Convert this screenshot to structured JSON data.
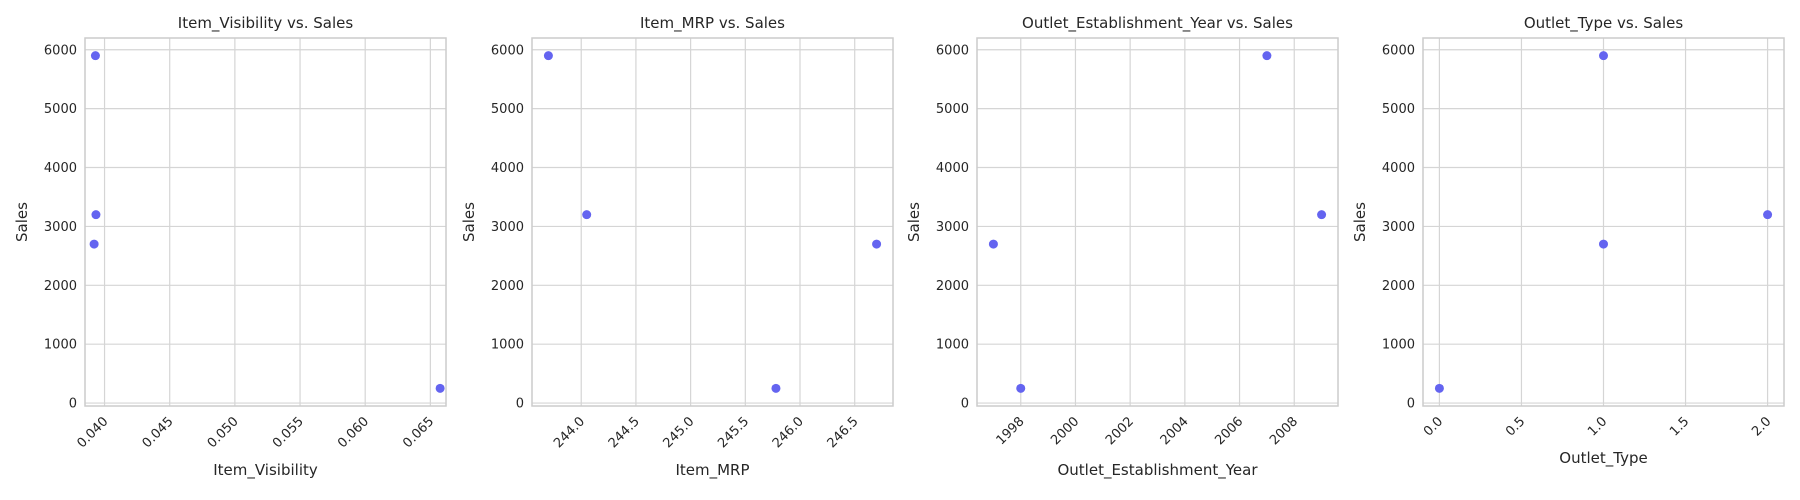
{
  "chart_data": [
    {
      "type": "scatter",
      "title": "Item_Visibility vs. Sales",
      "xlabel": "Item_Visibility",
      "ylabel": "Sales",
      "xlim": [
        0.0385,
        0.0662
      ],
      "ylim": [
        -50,
        6200
      ],
      "xticks": [
        0.04,
        0.045,
        0.05,
        0.055,
        0.06,
        0.065
      ],
      "xtick_labels": [
        "0.040",
        "0.045",
        "0.050",
        "0.055",
        "0.060",
        "0.065"
      ],
      "yticks": [
        0,
        1000,
        2000,
        3000,
        4000,
        5000,
        6000
      ],
      "ytick_labels": [
        "0",
        "1000",
        "2000",
        "3000",
        "4000",
        "5000",
        "6000"
      ],
      "x_tick_rotation": -45,
      "grid": true,
      "point_color": "#6464f0",
      "x": [
        0.0393,
        0.03934,
        0.0392,
        0.06575
      ],
      "y": [
        5900,
        3200,
        2700,
        250
      ]
    },
    {
      "type": "scatter",
      "title": "Item_MRP vs. Sales",
      "xlabel": "Item_MRP",
      "ylabel": "Sales",
      "xlim": [
        243.55,
        246.85
      ],
      "ylim": [
        -50,
        6200
      ],
      "xticks": [
        244.0,
        244.5,
        245.0,
        245.5,
        246.0,
        246.5
      ],
      "xtick_labels": [
        "244.0",
        "244.5",
        "245.0",
        "245.5",
        "246.0",
        "246.5"
      ],
      "yticks": [
        0,
        1000,
        2000,
        3000,
        4000,
        5000,
        6000
      ],
      "ytick_labels": [
        "0",
        "1000",
        "2000",
        "3000",
        "4000",
        "5000",
        "6000"
      ],
      "x_tick_rotation": -45,
      "grid": true,
      "point_color": "#6464f0",
      "x": [
        243.7,
        244.05,
        245.78,
        246.7
      ],
      "y": [
        5900,
        3200,
        250,
        2700
      ]
    },
    {
      "type": "scatter",
      "title": "Outlet_Establishment_Year vs. Sales",
      "xlabel": "Outlet_Establishment_Year",
      "ylabel": "Sales",
      "xlim": [
        1996.4,
        2009.6
      ],
      "ylim": [
        -50,
        6200
      ],
      "xticks": [
        1998,
        2000,
        2002,
        2004,
        2006,
        2008
      ],
      "xtick_labels": [
        "1998",
        "2000",
        "2002",
        "2004",
        "2006",
        "2008"
      ],
      "yticks": [
        0,
        1000,
        2000,
        3000,
        4000,
        5000,
        6000
      ],
      "ytick_labels": [
        "0",
        "1000",
        "2000",
        "3000",
        "4000",
        "5000",
        "6000"
      ],
      "x_tick_rotation": -45,
      "grid": true,
      "point_color": "#6464f0",
      "x": [
        1997,
        1998,
        2007,
        2009
      ],
      "y": [
        2700,
        250,
        5900,
        3200
      ]
    },
    {
      "type": "scatter",
      "title": "Outlet_Type vs. Sales",
      "xlabel": "Outlet_Type",
      "ylabel": "Sales",
      "xlim": [
        -0.1,
        2.1
      ],
      "ylim": [
        -50,
        6200
      ],
      "xticks": [
        0.0,
        0.5,
        1.0,
        1.5,
        2.0
      ],
      "xtick_labels": [
        "0.0",
        "0.5",
        "1.0",
        "1.5",
        "2.0"
      ],
      "yticks": [
        0,
        1000,
        2000,
        3000,
        4000,
        5000,
        6000
      ],
      "ytick_labels": [
        "0",
        "1000",
        "2000",
        "3000",
        "4000",
        "5000",
        "6000"
      ],
      "x_tick_rotation": -45,
      "grid": true,
      "point_color": "#6464f0",
      "x": [
        0.0,
        1.0,
        1.0,
        2.0
      ],
      "y": [
        250,
        5900,
        2700,
        3200
      ]
    }
  ]
}
